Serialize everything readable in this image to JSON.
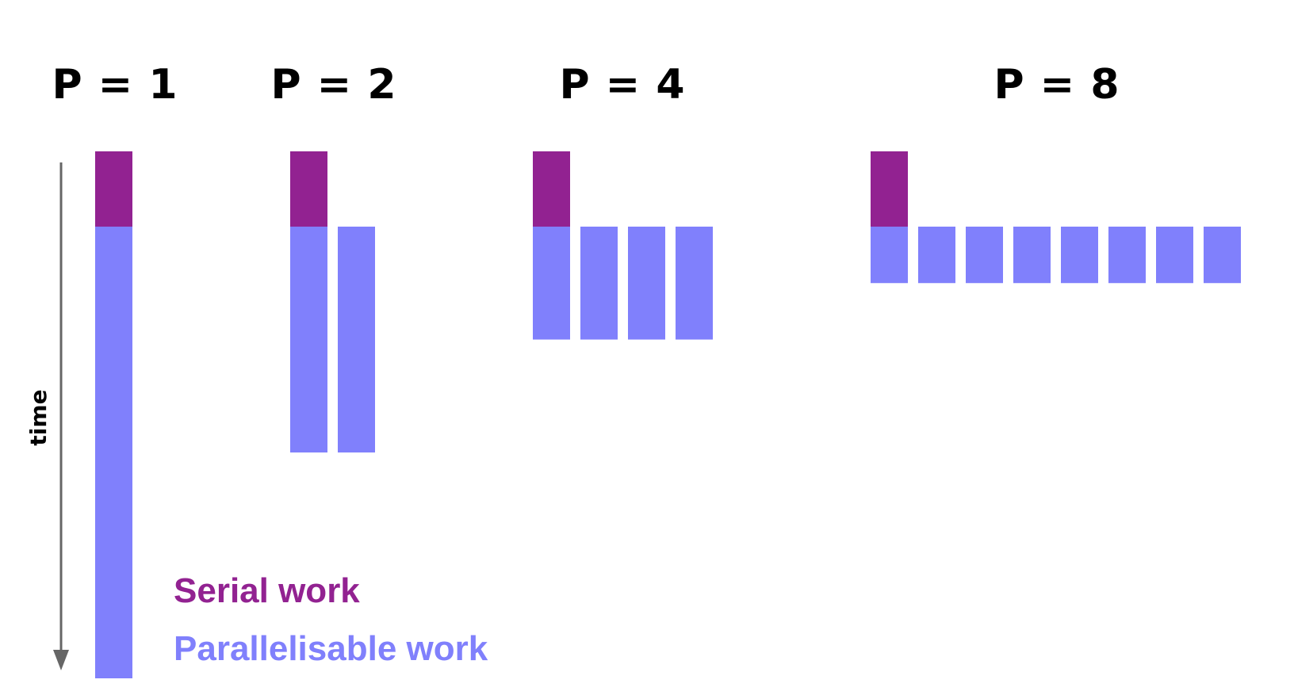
{
  "colors": {
    "serial": "#922291",
    "parallel": "#8080fc",
    "axis": "#666666",
    "title": "#000000"
  },
  "axis": {
    "label": "time",
    "direction": "down"
  },
  "legend": {
    "serial_label": "Serial work",
    "parallel_label": "Parallelisable work"
  },
  "panels": [
    {
      "title": "P = 1",
      "processors": 1,
      "serial_work": 1,
      "parallel_work_per_processor": 6
    },
    {
      "title": "P = 2",
      "processors": 2,
      "serial_work": 1,
      "parallel_work_per_processor": 3
    },
    {
      "title": "P = 4",
      "processors": 4,
      "serial_work": 1,
      "parallel_work_per_processor": 1.5
    },
    {
      "title": "P = 8",
      "processors": 8,
      "serial_work": 1,
      "parallel_work_per_processor": 0.75
    }
  ]
}
